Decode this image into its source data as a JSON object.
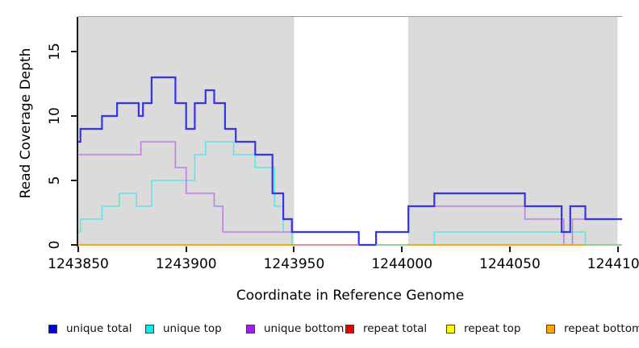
{
  "chart_data": {
    "type": "line",
    "subtype": "step-coverage",
    "title": "",
    "xlabel": "Coordinate in Reference Genome",
    "ylabel": "Read Coverage Depth",
    "xlim": [
      1243850,
      1244102
    ],
    "ylim": [
      0,
      17.7
    ],
    "grid": false,
    "legend_position": "bottom",
    "x_ticks": [
      {
        "value": 1243850,
        "label": "1243850"
      },
      {
        "value": 1243900,
        "label": "1243900"
      },
      {
        "value": 1243950,
        "label": "1243950"
      },
      {
        "value": 1244000,
        "label": "1244000"
      },
      {
        "value": 1244050,
        "label": "1244050"
      },
      {
        "value": 1244100,
        "label": "1244100"
      }
    ],
    "y_ticks": [
      {
        "value": 0,
        "label": "0"
      },
      {
        "value": 5,
        "label": "5"
      },
      {
        "value": 10,
        "label": "10"
      },
      {
        "value": 15,
        "label": "15"
      }
    ],
    "shaded_regions": {
      "color": "#DBDBDB",
      "regions": [
        [
          1243850,
          1243950
        ],
        [
          1244003,
          1244100
        ]
      ]
    },
    "series": [
      {
        "name": "repeat total",
        "key": "repeat-total",
        "line_color": "#EE3333",
        "width": 1.4,
        "points": [
          [
            1243850,
            0
          ]
        ]
      },
      {
        "name": "repeat top",
        "key": "repeat-top",
        "line_color": "#F5F53C",
        "width": 1.4,
        "points": [
          [
            1243850,
            0
          ]
        ]
      },
      {
        "name": "unique top",
        "key": "unique-top",
        "line_color": "#5FE4EE",
        "width": 1.6,
        "points": [
          [
            1243850,
            1
          ],
          [
            1243851,
            2
          ],
          [
            1243861,
            3
          ],
          [
            1243869,
            4
          ],
          [
            1243877,
            3
          ],
          [
            1243884,
            5
          ],
          [
            1243904,
            7
          ],
          [
            1243909,
            8
          ],
          [
            1243922,
            7
          ],
          [
            1243932,
            6
          ],
          [
            1243941,
            3
          ],
          [
            1243945,
            1
          ],
          [
            1243949,
            0
          ],
          [
            1244015,
            1
          ],
          [
            1244085,
            0
          ]
        ]
      },
      {
        "name": "unique bottom",
        "key": "unique-bottom",
        "line_color": "#BE7FDE",
        "width": 1.6,
        "points": [
          [
            1243850,
            7
          ],
          [
            1243879,
            8
          ],
          [
            1243895,
            6
          ],
          [
            1243900,
            4
          ],
          [
            1243913,
            3
          ],
          [
            1243917,
            1
          ],
          [
            1243980,
            0
          ],
          [
            1243988,
            1
          ],
          [
            1244003,
            3
          ],
          [
            1244057,
            2
          ],
          [
            1244075,
            0
          ],
          [
            1244079,
            2
          ]
        ]
      },
      {
        "name": "unique total",
        "key": "unique-total",
        "line_color": "#3434E8",
        "width": 2.2,
        "points": [
          [
            1243850,
            8
          ],
          [
            1243851,
            9
          ],
          [
            1243861,
            10
          ],
          [
            1243868,
            11
          ],
          [
            1243878,
            10
          ],
          [
            1243880,
            11
          ],
          [
            1243884,
            13
          ],
          [
            1243895,
            11
          ],
          [
            1243900,
            9
          ],
          [
            1243904,
            11
          ],
          [
            1243909,
            12
          ],
          [
            1243913,
            11
          ],
          [
            1243918,
            9
          ],
          [
            1243923,
            8
          ],
          [
            1243932,
            7
          ],
          [
            1243940,
            4
          ],
          [
            1243945,
            2
          ],
          [
            1243949,
            1
          ],
          [
            1243980,
            0
          ],
          [
            1243988,
            1
          ],
          [
            1244003,
            3
          ],
          [
            1244015,
            4
          ],
          [
            1244057,
            3
          ],
          [
            1244074,
            1
          ],
          [
            1244078,
            3
          ],
          [
            1244085,
            2
          ]
        ]
      }
    ],
    "baseline_segments": [
      {
        "from": 1243850,
        "to": 1243950,
        "color": "#FFA500",
        "note": "repeat bottom"
      },
      {
        "from": 1243950,
        "to": 1243980,
        "color": "#EE8095",
        "note": "repeat total visible"
      },
      {
        "from": 1243988,
        "to": 1244003,
        "color": "#8FCE95",
        "note": "overlapped zero lines"
      },
      {
        "from": 1244003,
        "to": 1244085,
        "color": "#FFA500",
        "note": "repeat bottom"
      },
      {
        "from": 1244085,
        "to": 1244102,
        "color": "#8FCE95",
        "note": "overlapped zero lines"
      }
    ],
    "legend": [
      {
        "label": "unique total",
        "color": "#0000EE",
        "key": "unique-total"
      },
      {
        "label": "unique top",
        "color": "#00EEEE",
        "key": "unique-top"
      },
      {
        "label": "unique bottom",
        "color": "#A020F0",
        "key": "unique-bottom"
      },
      {
        "label": "repeat total",
        "color": "#EE0000",
        "key": "repeat-total"
      },
      {
        "label": "repeat top",
        "color": "#FFFF00",
        "key": "repeat-top"
      },
      {
        "label": "repeat bottom",
        "color": "#FFA500",
        "key": "repeat-bottom"
      }
    ]
  }
}
